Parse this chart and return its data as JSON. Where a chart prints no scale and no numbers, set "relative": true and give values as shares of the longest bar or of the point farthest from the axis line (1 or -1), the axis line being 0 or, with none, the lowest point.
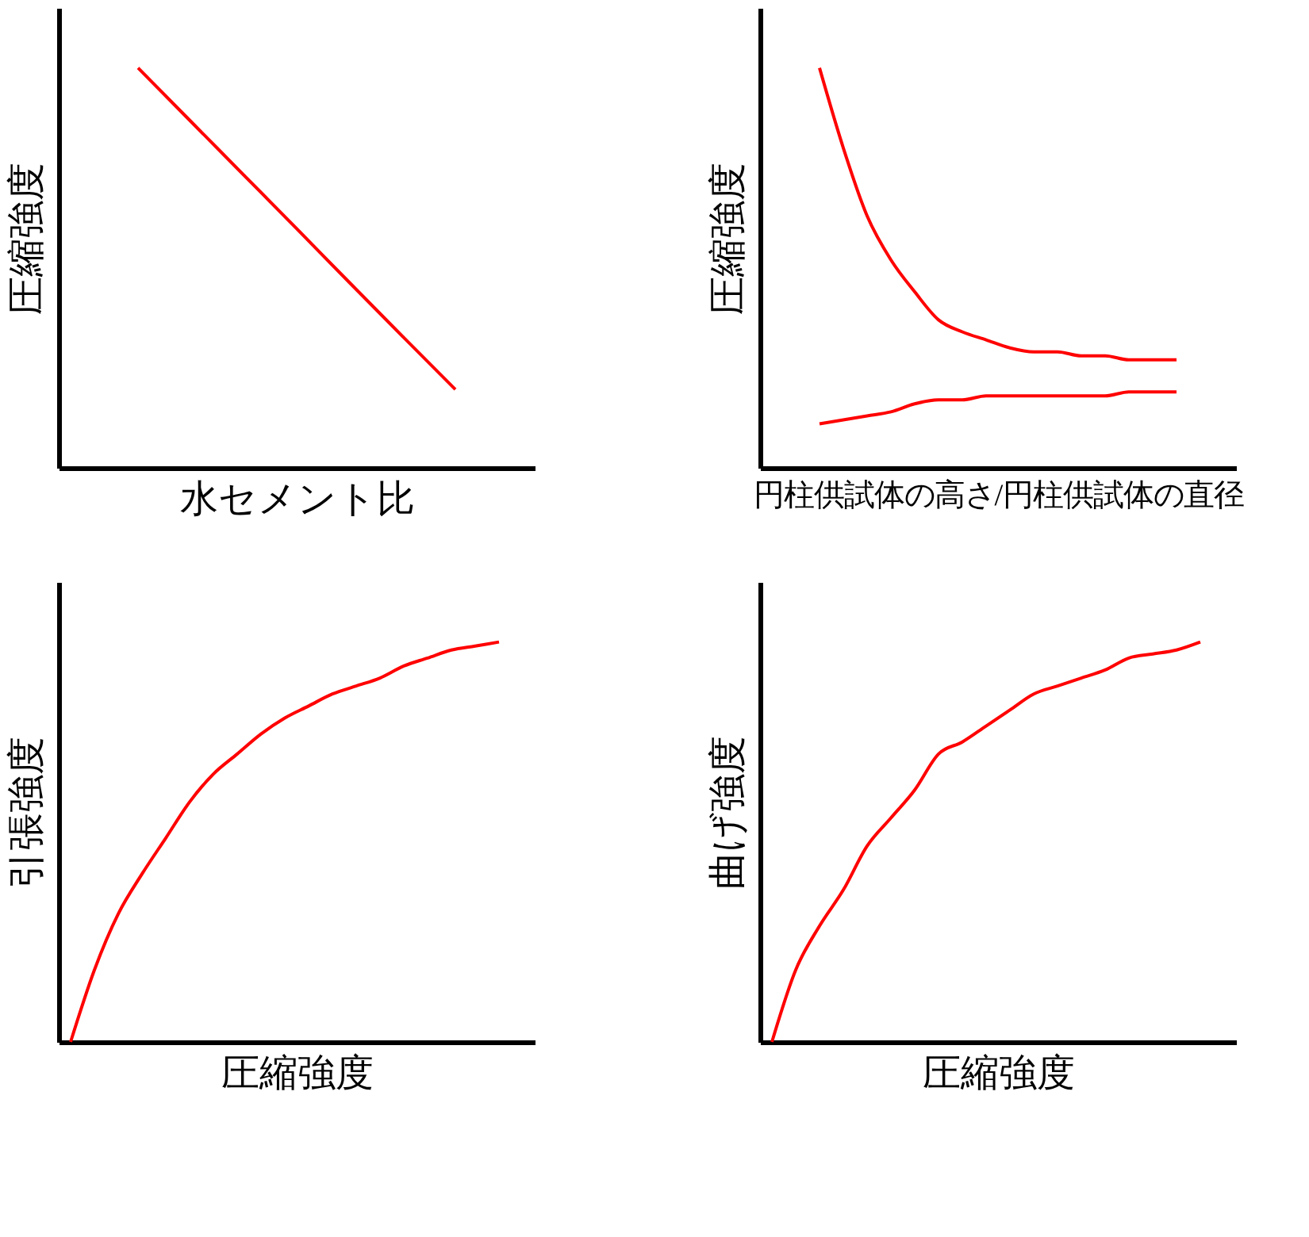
{
  "chart_data": [
    {
      "type": "line",
      "relative": true,
      "ylabel": "圧縮強度",
      "xlabel": "水セメント比",
      "categories": [
        null,
        null,
        null,
        null,
        null,
        null,
        null,
        null,
        null
      ],
      "series": [
        {
          "color": "#ff0000",
          "values": [
            null,
            1,
            0.866,
            0.732,
            0.598,
            0.463,
            0.329,
            0.196,
            null
          ]
        }
      ]
    },
    {
      "type": "line",
      "relative": true,
      "ylabel": "圧縮強度",
      "xlabel": "円柱供試体の高さ/円柱供試体の直径",
      "categories": [
        null,
        null,
        null,
        null,
        null,
        null,
        null,
        null,
        null,
        null,
        null,
        null,
        null,
        null,
        null,
        null,
        null,
        null,
        null,
        null
      ],
      "series": [
        {
          "color": "#ff0000",
          "values": [
            null,
            null,
            1,
            0.8,
            0.63,
            0.52,
            0.44,
            0.37,
            0.34,
            0.32,
            0.3,
            0.29,
            0.29,
            0.28,
            0.28,
            0.27,
            0.27,
            0.27,
            null,
            null
          ]
        },
        {
          "color": "#ff0000",
          "values": [
            null,
            null,
            0.11,
            0.12,
            0.13,
            0.14,
            0.16,
            0.17,
            0.17,
            0.18,
            0.18,
            0.18,
            0.18,
            0.18,
            0.18,
            0.19,
            0.19,
            0.19,
            null,
            null
          ]
        }
      ]
    },
    {
      "type": "line",
      "relative": true,
      "ylabel": "引張強度",
      "xlabel": "圧縮強度",
      "categories": [
        null,
        null,
        null,
        null,
        null,
        null,
        null,
        null,
        null,
        null,
        null,
        null,
        null,
        null,
        null,
        null,
        null,
        null,
        null,
        null
      ],
      "series": [
        {
          "color": "#ff0000",
          "values": [
            0,
            0.18,
            0.32,
            0.42,
            0.51,
            0.6,
            0.67,
            0.72,
            0.77,
            0.81,
            0.84,
            0.87,
            0.89,
            0.91,
            0.94,
            0.96,
            0.98,
            0.99,
            1,
            null
          ]
        }
      ]
    },
    {
      "type": "line",
      "relative": true,
      "ylabel": "曲げ強度",
      "xlabel": "圧縮強度",
      "categories": [
        null,
        null,
        null,
        null,
        null,
        null,
        null,
        null,
        null,
        null,
        null,
        null,
        null,
        null,
        null,
        null,
        null,
        null,
        null,
        null
      ],
      "series": [
        {
          "color": "#ff0000",
          "values": [
            0,
            0.18,
            0.29,
            0.38,
            0.49,
            0.56,
            0.63,
            0.72,
            0.75,
            0.79,
            0.83,
            0.87,
            0.89,
            0.91,
            0.93,
            0.96,
            0.97,
            0.98,
            1,
            null
          ]
        }
      ]
    }
  ]
}
